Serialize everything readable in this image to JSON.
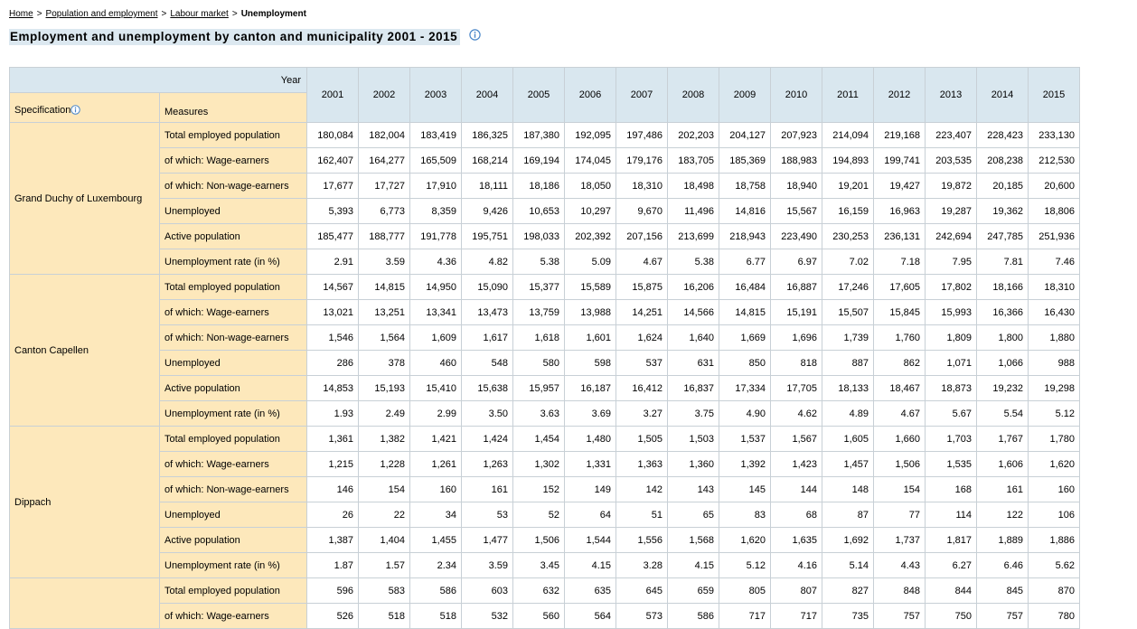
{
  "breadcrumb": {
    "items": [
      "Home",
      "Population and employment",
      "Labour market"
    ],
    "current": "Unemployment",
    "separator": ">"
  },
  "title": "Employment and unemployment by canton and municipality 2001 - 2015",
  "table": {
    "year_label": "Year",
    "spec_label": "Specification",
    "measures_label": "Measures",
    "years": [
      "2001",
      "2002",
      "2003",
      "2004",
      "2005",
      "2006",
      "2007",
      "2008",
      "2009",
      "2010",
      "2011",
      "2012",
      "2013",
      "2014",
      "2015"
    ],
    "measures": [
      "Total employed population",
      "of which: Wage-earners",
      "of which: Non-wage-earners",
      "Unemployed",
      "Active population",
      "Unemployment rate (in %)"
    ],
    "groups": [
      {
        "name": "Grand Duchy of Luxembourg",
        "rows": [
          [
            "180,084",
            "182,004",
            "183,419",
            "186,325",
            "187,380",
            "192,095",
            "197,486",
            "202,203",
            "204,127",
            "207,923",
            "214,094",
            "219,168",
            "223,407",
            "228,423",
            "233,130"
          ],
          [
            "162,407",
            "164,277",
            "165,509",
            "168,214",
            "169,194",
            "174,045",
            "179,176",
            "183,705",
            "185,369",
            "188,983",
            "194,893",
            "199,741",
            "203,535",
            "208,238",
            "212,530"
          ],
          [
            "17,677",
            "17,727",
            "17,910",
            "18,111",
            "18,186",
            "18,050",
            "18,310",
            "18,498",
            "18,758",
            "18,940",
            "19,201",
            "19,427",
            "19,872",
            "20,185",
            "20,600"
          ],
          [
            "5,393",
            "6,773",
            "8,359",
            "9,426",
            "10,653",
            "10,297",
            "9,670",
            "11,496",
            "14,816",
            "15,567",
            "16,159",
            "16,963",
            "19,287",
            "19,362",
            "18,806"
          ],
          [
            "185,477",
            "188,777",
            "191,778",
            "195,751",
            "198,033",
            "202,392",
            "207,156",
            "213,699",
            "218,943",
            "223,490",
            "230,253",
            "236,131",
            "242,694",
            "247,785",
            "251,936"
          ],
          [
            "2.91",
            "3.59",
            "4.36",
            "4.82",
            "5.38",
            "5.09",
            "4.67",
            "5.38",
            "6.77",
            "6.97",
            "7.02",
            "7.18",
            "7.95",
            "7.81",
            "7.46"
          ]
        ]
      },
      {
        "name": "Canton Capellen",
        "rows": [
          [
            "14,567",
            "14,815",
            "14,950",
            "15,090",
            "15,377",
            "15,589",
            "15,875",
            "16,206",
            "16,484",
            "16,887",
            "17,246",
            "17,605",
            "17,802",
            "18,166",
            "18,310"
          ],
          [
            "13,021",
            "13,251",
            "13,341",
            "13,473",
            "13,759",
            "13,988",
            "14,251",
            "14,566",
            "14,815",
            "15,191",
            "15,507",
            "15,845",
            "15,993",
            "16,366",
            "16,430"
          ],
          [
            "1,546",
            "1,564",
            "1,609",
            "1,617",
            "1,618",
            "1,601",
            "1,624",
            "1,640",
            "1,669",
            "1,696",
            "1,739",
            "1,760",
            "1,809",
            "1,800",
            "1,880"
          ],
          [
            "286",
            "378",
            "460",
            "548",
            "580",
            "598",
            "537",
            "631",
            "850",
            "818",
            "887",
            "862",
            "1,071",
            "1,066",
            "988"
          ],
          [
            "14,853",
            "15,193",
            "15,410",
            "15,638",
            "15,957",
            "16,187",
            "16,412",
            "16,837",
            "17,334",
            "17,705",
            "18,133",
            "18,467",
            "18,873",
            "19,232",
            "19,298"
          ],
          [
            "1.93",
            "2.49",
            "2.99",
            "3.50",
            "3.63",
            "3.69",
            "3.27",
            "3.75",
            "4.90",
            "4.62",
            "4.89",
            "4.67",
            "5.67",
            "5.54",
            "5.12"
          ]
        ]
      },
      {
        "name": "Dippach",
        "rows": [
          [
            "1,361",
            "1,382",
            "1,421",
            "1,424",
            "1,454",
            "1,480",
            "1,505",
            "1,503",
            "1,537",
            "1,567",
            "1,605",
            "1,660",
            "1,703",
            "1,767",
            "1,780"
          ],
          [
            "1,215",
            "1,228",
            "1,261",
            "1,263",
            "1,302",
            "1,331",
            "1,363",
            "1,360",
            "1,392",
            "1,423",
            "1,457",
            "1,506",
            "1,535",
            "1,606",
            "1,620"
          ],
          [
            "146",
            "154",
            "160",
            "161",
            "152",
            "149",
            "142",
            "143",
            "145",
            "144",
            "148",
            "154",
            "168",
            "161",
            "160"
          ],
          [
            "26",
            "22",
            "34",
            "53",
            "52",
            "64",
            "51",
            "65",
            "83",
            "68",
            "87",
            "77",
            "114",
            "122",
            "106"
          ],
          [
            "1,387",
            "1,404",
            "1,455",
            "1,477",
            "1,506",
            "1,544",
            "1,556",
            "1,568",
            "1,620",
            "1,635",
            "1,692",
            "1,737",
            "1,817",
            "1,889",
            "1,886"
          ],
          [
            "1.87",
            "1.57",
            "2.34",
            "3.59",
            "3.45",
            "4.15",
            "3.28",
            "4.15",
            "5.12",
            "4.16",
            "5.14",
            "4.43",
            "6.27",
            "6.46",
            "5.62"
          ]
        ]
      },
      {
        "name": "",
        "rows": [
          [
            "596",
            "583",
            "586",
            "603",
            "632",
            "635",
            "645",
            "659",
            "805",
            "807",
            "827",
            "848",
            "844",
            "845",
            "870"
          ],
          [
            "526",
            "518",
            "518",
            "532",
            "560",
            "564",
            "573",
            "586",
            "717",
            "717",
            "735",
            "757",
            "750",
            "757",
            "780"
          ]
        ]
      }
    ]
  },
  "icons": {
    "info": "info-icon"
  },
  "colors": {
    "header_blue": "#d9e7ef",
    "label_beige": "#fde8bb",
    "info_icon": "#4a86c8",
    "border": "#c8d0d6"
  }
}
